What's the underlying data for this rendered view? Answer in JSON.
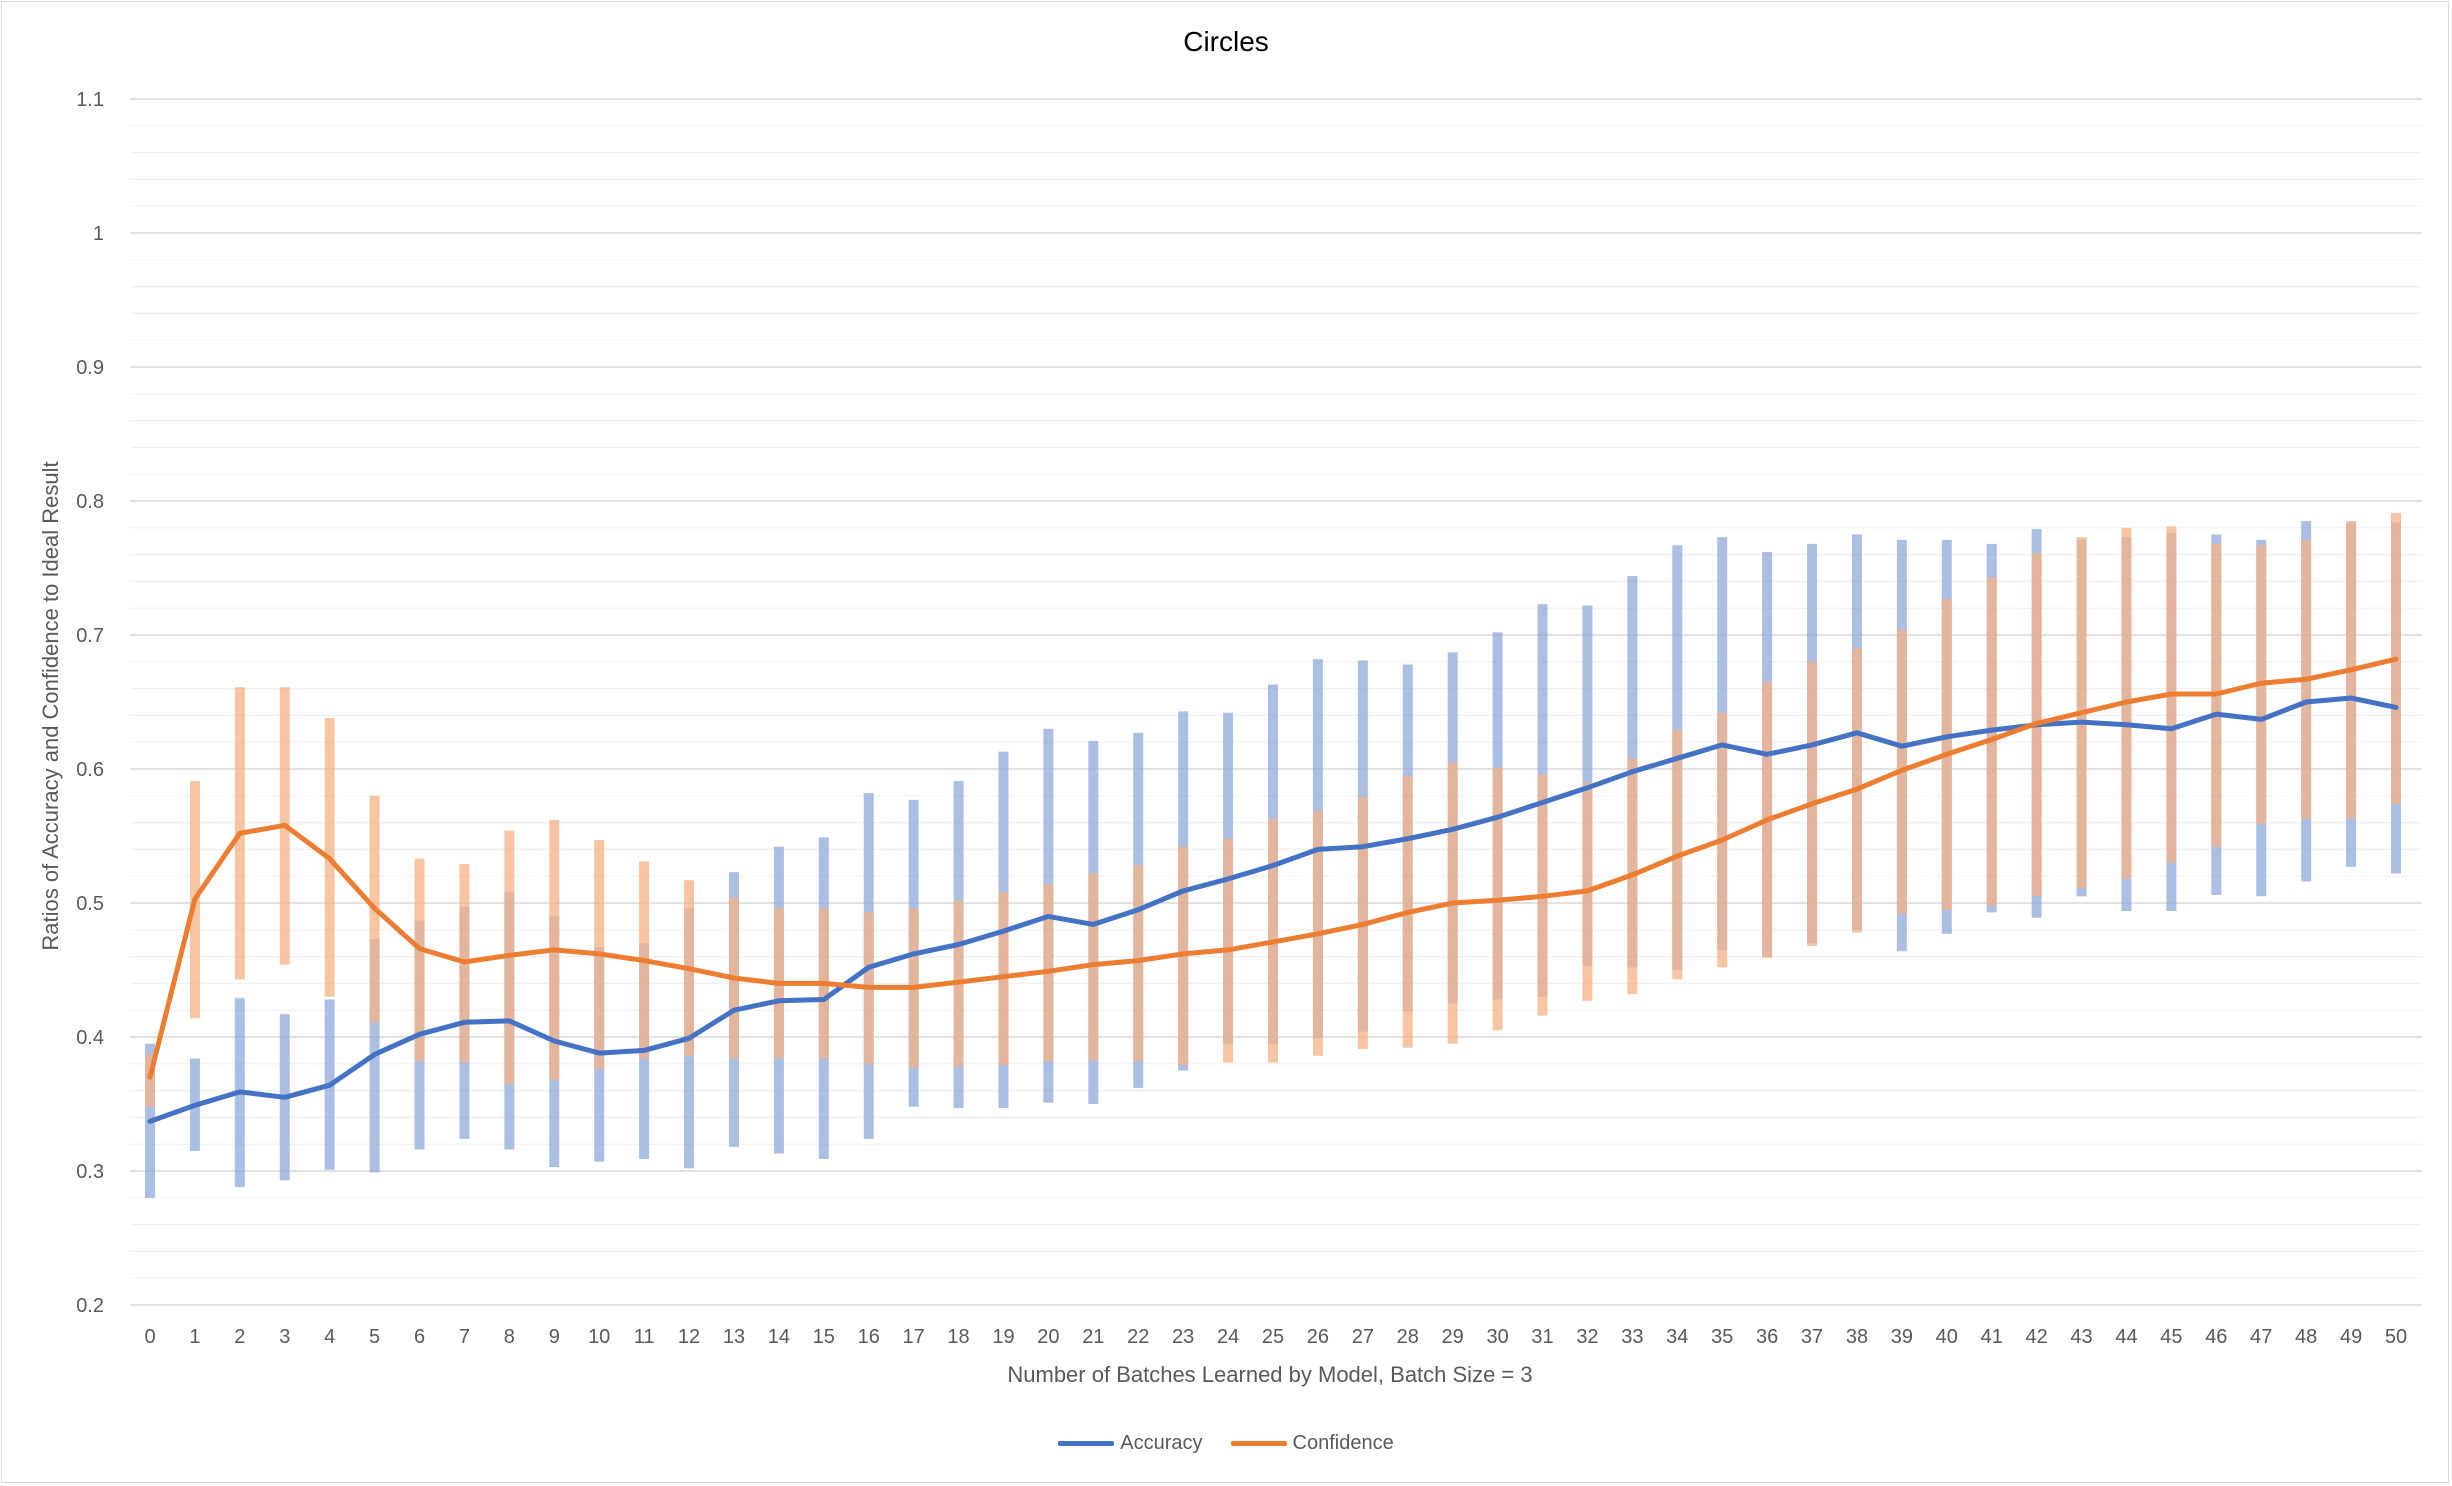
{
  "chart_data": {
    "type": "line",
    "title": "Circles",
    "xlabel": "Number of Batches Learned by Model, Batch Size = 3",
    "ylabel": "Ratios of Accuracy and Confidence to Ideal Result",
    "ylim": [
      0.2,
      1.1
    ],
    "yticks": [
      "0.2",
      "0.3",
      "0.4",
      "0.5",
      "0.6",
      "0.7",
      "0.8",
      "0.9",
      "1",
      "1.1"
    ],
    "minor_grid_step": 0.02,
    "grid": true,
    "legend_position": "bottom",
    "x": [
      0,
      1,
      2,
      3,
      4,
      5,
      6,
      7,
      8,
      9,
      10,
      11,
      12,
      13,
      14,
      15,
      16,
      17,
      18,
      19,
      20,
      21,
      22,
      23,
      24,
      25,
      26,
      27,
      28,
      29,
      30,
      31,
      32,
      33,
      34,
      35,
      36,
      37,
      38,
      39,
      40,
      41,
      42,
      43,
      44,
      45,
      46,
      47,
      48,
      49,
      50
    ],
    "series": [
      {
        "name": "Accuracy",
        "color": "#4472c4",
        "band_color": "#8faadc",
        "values": [
          0.337,
          0.349,
          0.359,
          0.355,
          0.364,
          0.387,
          0.402,
          0.411,
          0.412,
          0.397,
          0.388,
          0.39,
          0.399,
          0.42,
          0.427,
          0.428,
          0.452,
          0.462,
          0.469,
          0.479,
          0.49,
          0.484,
          0.495,
          0.509,
          0.518,
          0.528,
          0.54,
          0.542,
          0.548,
          0.555,
          0.564,
          0.575,
          0.586,
          0.598,
          0.608,
          0.618,
          0.611,
          0.618,
          0.627,
          0.617,
          0.624,
          0.629,
          0.633,
          0.635,
          0.633,
          0.63,
          0.641,
          0.637,
          0.65,
          0.653,
          0.646
        ],
        "lower": [
          0.28,
          0.315,
          0.288,
          0.293,
          0.301,
          0.299,
          0.316,
          0.324,
          0.316,
          0.303,
          0.307,
          0.309,
          0.302,
          0.318,
          0.313,
          0.309,
          0.324,
          0.348,
          0.347,
          0.347,
          0.351,
          0.35,
          0.362,
          0.375,
          0.395,
          0.395,
          0.399,
          0.404,
          0.419,
          0.425,
          0.428,
          0.43,
          0.453,
          0.452,
          0.45,
          0.465,
          0.46,
          0.47,
          0.48,
          0.464,
          0.477,
          0.493,
          0.489,
          0.505,
          0.494,
          0.494,
          0.506,
          0.505,
          0.516,
          0.527,
          0.522
        ],
        "upper": [
          0.395,
          0.384,
          0.429,
          0.417,
          0.428,
          0.473,
          0.487,
          0.497,
          0.508,
          0.49,
          0.467,
          0.47,
          0.496,
          0.523,
          0.542,
          0.549,
          0.582,
          0.577,
          0.591,
          0.613,
          0.63,
          0.621,
          0.627,
          0.643,
          0.642,
          0.663,
          0.682,
          0.681,
          0.678,
          0.687,
          0.702,
          0.723,
          0.722,
          0.744,
          0.767,
          0.773,
          0.762,
          0.768,
          0.775,
          0.771,
          0.771,
          0.768,
          0.779,
          0.771,
          0.773,
          0.776,
          0.775,
          0.771,
          0.785,
          0.784,
          0.784
        ]
      },
      {
        "name": "Confidence",
        "color": "#ed7d31",
        "band_color": "#f4b183",
        "values": [
          0.37,
          0.503,
          0.552,
          0.558,
          0.533,
          0.496,
          0.466,
          0.456,
          0.461,
          0.465,
          0.462,
          0.457,
          0.451,
          0.444,
          0.44,
          0.44,
          0.437,
          0.437,
          0.441,
          0.445,
          0.449,
          0.454,
          0.457,
          0.462,
          0.465,
          0.471,
          0.477,
          0.484,
          0.493,
          0.5,
          0.502,
          0.505,
          0.509,
          0.521,
          0.535,
          0.547,
          0.562,
          0.574,
          0.585,
          0.599,
          0.611,
          0.622,
          0.634,
          0.642,
          0.65,
          0.656,
          0.656,
          0.664,
          0.667,
          0.674,
          0.682
        ],
        "lower": [
          0.348,
          0.414,
          0.443,
          0.454,
          0.43,
          0.411,
          0.382,
          0.381,
          0.365,
          0.368,
          0.376,
          0.384,
          0.386,
          0.384,
          0.384,
          0.384,
          0.38,
          0.377,
          0.378,
          0.379,
          0.382,
          0.383,
          0.382,
          0.379,
          0.381,
          0.381,
          0.386,
          0.391,
          0.392,
          0.395,
          0.405,
          0.416,
          0.427,
          0.432,
          0.443,
          0.452,
          0.459,
          0.468,
          0.478,
          0.492,
          0.495,
          0.498,
          0.505,
          0.511,
          0.518,
          0.53,
          0.542,
          0.559,
          0.563,
          0.563,
          0.574
        ],
        "upper": [
          0.387,
          0.591,
          0.661,
          0.661,
          0.638,
          0.58,
          0.533,
          0.529,
          0.554,
          0.562,
          0.547,
          0.531,
          0.517,
          0.504,
          0.496,
          0.496,
          0.493,
          0.496,
          0.502,
          0.508,
          0.514,
          0.522,
          0.528,
          0.542,
          0.548,
          0.563,
          0.569,
          0.579,
          0.595,
          0.605,
          0.601,
          0.596,
          0.59,
          0.608,
          0.629,
          0.642,
          0.665,
          0.68,
          0.69,
          0.704,
          0.727,
          0.743,
          0.761,
          0.773,
          0.78,
          0.781,
          0.768,
          0.767,
          0.771,
          0.785,
          0.791
        ]
      }
    ]
  }
}
